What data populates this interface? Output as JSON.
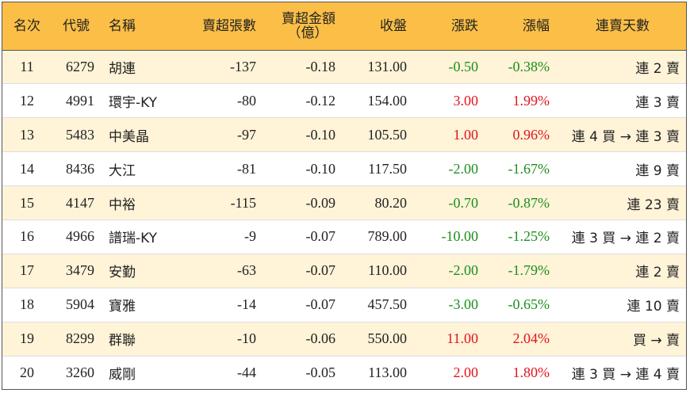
{
  "header": {
    "rank": "名次",
    "code": "代號",
    "name": "名稱",
    "sell_lots": "賣超張數",
    "sell_amount_line1": "賣超金額",
    "sell_amount_line2": "（億）",
    "close": "收盤",
    "change": "漲跌",
    "change_pct": "漲幅",
    "streak": "連賣天數"
  },
  "colors": {
    "header_bg": "#fbbf47",
    "alt_row_bg": "#fff3d8",
    "down": "#1c8f1c",
    "up": "#e0141e"
  },
  "rows": [
    {
      "rank": "11",
      "code": "6279",
      "name": "胡連",
      "sell_lots": "-137",
      "sell_amount": "-0.18",
      "close": "131.00",
      "change": "-0.50",
      "change_pct": "-0.38%",
      "streak": "連 2 賣",
      "dir": "neg"
    },
    {
      "rank": "12",
      "code": "4991",
      "name": "環宇-KY",
      "sell_lots": "-80",
      "sell_amount": "-0.12",
      "close": "154.00",
      "change": "3.00",
      "change_pct": "1.99%",
      "streak": "連 3 賣",
      "dir": "pos"
    },
    {
      "rank": "13",
      "code": "5483",
      "name": "中美晶",
      "sell_lots": "-97",
      "sell_amount": "-0.10",
      "close": "105.50",
      "change": "1.00",
      "change_pct": "0.96%",
      "streak": "連 4 買 → 連 3 賣",
      "dir": "pos"
    },
    {
      "rank": "14",
      "code": "8436",
      "name": "大江",
      "sell_lots": "-81",
      "sell_amount": "-0.10",
      "close": "117.50",
      "change": "-2.00",
      "change_pct": "-1.67%",
      "streak": "連 9 賣",
      "dir": "neg"
    },
    {
      "rank": "15",
      "code": "4147",
      "name": "中裕",
      "sell_lots": "-115",
      "sell_amount": "-0.09",
      "close": "80.20",
      "change": "-0.70",
      "change_pct": "-0.87%",
      "streak": "連 23 賣",
      "dir": "neg"
    },
    {
      "rank": "16",
      "code": "4966",
      "name": "譜瑞-KY",
      "sell_lots": "-9",
      "sell_amount": "-0.07",
      "close": "789.00",
      "change": "-10.00",
      "change_pct": "-1.25%",
      "streak": "連 3 買 → 連 2 賣",
      "dir": "neg"
    },
    {
      "rank": "17",
      "code": "3479",
      "name": "安勤",
      "sell_lots": "-63",
      "sell_amount": "-0.07",
      "close": "110.00",
      "change": "-2.00",
      "change_pct": "-1.79%",
      "streak": "連 2 賣",
      "dir": "neg"
    },
    {
      "rank": "18",
      "code": "5904",
      "name": "寶雅",
      "sell_lots": "-14",
      "sell_amount": "-0.07",
      "close": "457.50",
      "change": "-3.00",
      "change_pct": "-0.65%",
      "streak": "連 10 賣",
      "dir": "neg"
    },
    {
      "rank": "19",
      "code": "8299",
      "name": "群聯",
      "sell_lots": "-10",
      "sell_amount": "-0.06",
      "close": "550.00",
      "change": "11.00",
      "change_pct": "2.04%",
      "streak": "買 → 賣",
      "dir": "pos"
    },
    {
      "rank": "20",
      "code": "3260",
      "name": "威剛",
      "sell_lots": "-44",
      "sell_amount": "-0.05",
      "close": "113.00",
      "change": "2.00",
      "change_pct": "1.80%",
      "streak": "連 3 買 → 連 4 賣",
      "dir": "pos"
    }
  ]
}
